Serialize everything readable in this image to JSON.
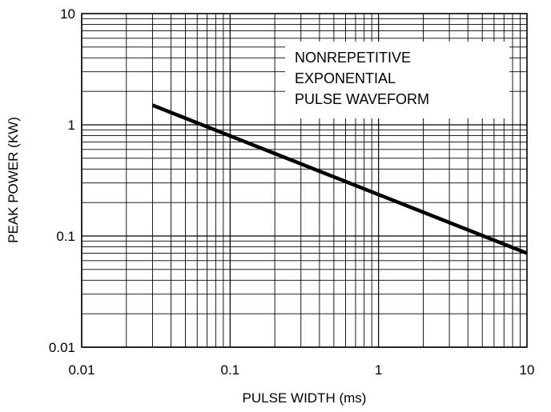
{
  "chart_data": {
    "type": "line",
    "title": "",
    "xlabel": "PULSE WIDTH (ms)",
    "ylabel": "PEAK POWER (KW)",
    "x_scale": "log",
    "y_scale": "log",
    "xlim": [
      0.01,
      10
    ],
    "ylim": [
      0.01,
      10
    ],
    "x_ticks": [
      "0.01",
      "0.1",
      "1",
      "10"
    ],
    "y_ticks": [
      "0.01",
      "0.1",
      "1",
      "10"
    ],
    "grid": true,
    "series": [
      {
        "x": [
          0.03,
          10
        ],
        "y": [
          1.5,
          0.07
        ]
      }
    ],
    "annotation": [
      "NONREPETITIVE",
      "EXPONENTIAL",
      "PULSE WAVEFORM"
    ],
    "colors": {
      "line": "#000000",
      "grid": "#000000",
      "background": "#ffffff"
    }
  }
}
